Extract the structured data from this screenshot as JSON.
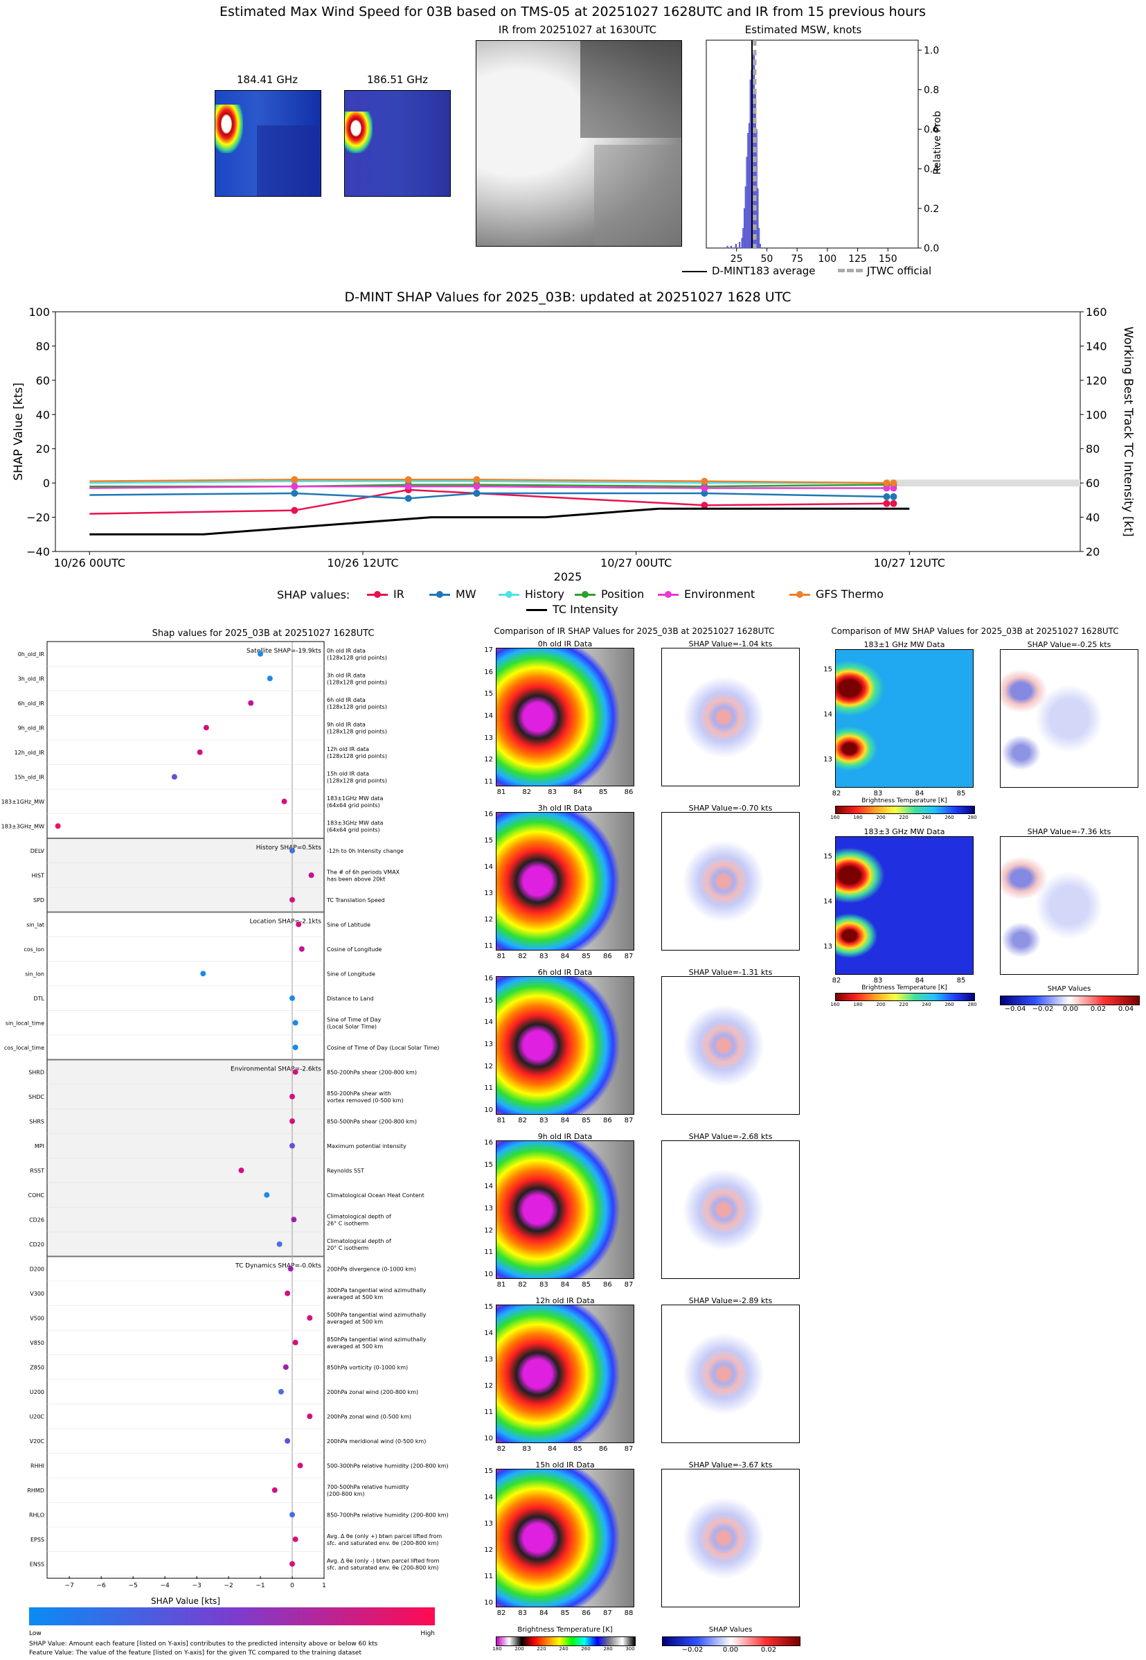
{
  "header": {
    "main_title": "Estimated Max Wind Speed for 03B based on TMS-05 at 20251027 1628UTC and IR from 15 previous hours",
    "mw1_title": "184.41 GHz",
    "mw2_title": "186.51 GHz",
    "ir_title": "IR from 20251027 at 1630UTC",
    "hist_title": "Estimated MSW, knots",
    "hist_ylabel": "Relative Prob",
    "hist_xticks": [
      "25",
      "50",
      "75",
      "100",
      "125",
      "150"
    ],
    "hist_yticks": [
      "0.0",
      "0.2",
      "0.4",
      "0.6",
      "0.8",
      "1.0"
    ],
    "legend_avg": "D-MINT183 average",
    "legend_jtwc": "JTWC official"
  },
  "shap_ts": {
    "title": "D-MINT SHAP Values for 2025_03B: updated at 20251027 1628 UTC",
    "ylabel_left": "SHAP Value [kts]",
    "ylabel_right": "Working Best Track TC Intensity [kt]",
    "xlabel": "2025",
    "left_ticks": [
      "100",
      "80",
      "60",
      "40",
      "20",
      "0",
      "−20",
      "−40"
    ],
    "right_ticks": [
      "160",
      "140",
      "120",
      "100",
      "80",
      "60",
      "40",
      "20"
    ],
    "x_ticks": [
      "10/26 00UTC",
      "10/26 12UTC",
      "10/27 00UTC",
      "10/27 12UTC"
    ],
    "legend_label": "SHAP values:",
    "legend_items": [
      "IR",
      "MW",
      "History",
      "Position",
      "Environment",
      "GFS Thermo",
      "TC Intensity"
    ]
  },
  "chart_data": {
    "type": "line",
    "title": "D-MINT SHAP Values for 2025_03B: updated at 20251027 1628 UTC",
    "x_hours": [
      0,
      18,
      28,
      34,
      54,
      70
    ],
    "ylim": [
      -40,
      100
    ],
    "y2lim": [
      20,
      160
    ],
    "series": [
      {
        "name": "IR",
        "color": "#e8124e",
        "values": [
          -18,
          -16,
          -4,
          -6,
          -13,
          -12
        ]
      },
      {
        "name": "MW",
        "color": "#1f77b4",
        "values": [
          -7,
          -6,
          -9,
          -6,
          -6,
          -8
        ]
      },
      {
        "name": "History",
        "color": "#4ee2e8",
        "values": [
          0,
          1,
          1,
          1,
          0,
          0
        ]
      },
      {
        "name": "Position",
        "color": "#2ca02c",
        "values": [
          -2,
          -2,
          -1,
          -1,
          -2,
          -1
        ]
      },
      {
        "name": "Environment",
        "color": "#e839d5",
        "values": [
          -3,
          -2,
          -2,
          -2,
          -3,
          -3
        ]
      },
      {
        "name": "GFS Thermo",
        "color": "#f07f29",
        "values": [
          1,
          2,
          2,
          2,
          1,
          0
        ]
      }
    ],
    "tc_intensity": {
      "name": "TC Intensity",
      "x_hours": [
        0,
        10,
        20,
        30,
        40,
        50,
        70,
        72
      ],
      "values": [
        30,
        30,
        35,
        40,
        40,
        45,
        45,
        45
      ]
    }
  },
  "feature_panel": {
    "title": "Shap values for 2025_03B at 20251027 1628UTC",
    "xlabel": "SHAP Value [kts]",
    "xticks": [
      "−7",
      "−6",
      "−5",
      "−4",
      "−3",
      "−2",
      "−1",
      "0",
      "1"
    ],
    "group_labels": [
      {
        "text": "Satellite SHAP=-19.9kts"
      },
      {
        "text": "History SHAP=0.5kts"
      },
      {
        "text": "Location SHAP=-2.1kts"
      },
      {
        "text": "Environmental SHAP=-2.6kts"
      },
      {
        "text": "TC Dynamics SHAP=-0.0kts"
      }
    ],
    "rows": [
      {
        "name": "0h_old_IR",
        "desc": "0h old IR data\n(128x128 grid points)",
        "shap": -1.0,
        "color": "#1a8be8"
      },
      {
        "name": "3h_old_IR",
        "desc": "3h old IR data\n(128x128 grid points)",
        "shap": -0.7,
        "color": "#1a8be8"
      },
      {
        "name": "6h_old_IR",
        "desc": "6h old IR data\n(128x128 grid points)",
        "shap": -1.3,
        "color": "#c41296"
      },
      {
        "name": "9h_old_IR",
        "desc": "9h old IR data\n(128x128 grid points)",
        "shap": -2.7,
        "color": "#d4107e"
      },
      {
        "name": "12h_old_IR",
        "desc": "12h old IR data\n(128x128 grid points)",
        "shap": -2.9,
        "color": "#d4107e"
      },
      {
        "name": "15h_old_IR",
        "desc": "15h old IR data\n(128x128 grid points)",
        "shap": -3.7,
        "color": "#6a4bd8"
      },
      {
        "name": "183±1GHz_MW",
        "desc": "183±1GHz MW data\n(64x64 grid points)",
        "shap": -0.25,
        "color": "#d4107e"
      },
      {
        "name": "183±3GHz_MW",
        "desc": "183±3GHz MW data\n(64x64 grid points)",
        "shap": -7.36,
        "color": "#f4105a"
      },
      {
        "name": "DELV",
        "desc": "-12h to 0h Intensity change",
        "shap": 0.0,
        "color": "#4a6ee0"
      },
      {
        "name": "HIST",
        "desc": "The # of 6h periods VMAX\nhas been above 20kt",
        "shap": 0.6,
        "color": "#c41296"
      },
      {
        "name": "SPD",
        "desc": "TC Translation Speed",
        "shap": 0.0,
        "color": "#d4107e"
      },
      {
        "name": "sin_lat",
        "desc": "Sine of Latitude",
        "shap": 0.2,
        "color": "#d4107e"
      },
      {
        "name": "cos_lon",
        "desc": "Cosine of Longitude",
        "shap": 0.3,
        "color": "#c41296"
      },
      {
        "name": "sin_lon",
        "desc": "Sine of Longitude",
        "shap": -2.8,
        "color": "#1a8be8"
      },
      {
        "name": "DTL",
        "desc": "Distance to Land",
        "shap": 0.0,
        "color": "#1a8be8"
      },
      {
        "name": "sin_local_time",
        "desc": "Sine of Time of Day\n(Local Solar Time)",
        "shap": 0.1,
        "color": "#1a8be8"
      },
      {
        "name": "cos_local_time",
        "desc": "Cosine of Time of Day (Local Solar Time)",
        "shap": 0.1,
        "color": "#1a8be8"
      },
      {
        "name": "SHRD",
        "desc": "850-200hPa shear (200-800 km)",
        "shap": 0.1,
        "color": "#d4107e"
      },
      {
        "name": "SHDC",
        "desc": "850-200hPa shear with\nvortex removed (0-500 km)",
        "shap": 0.0,
        "color": "#d4107e"
      },
      {
        "name": "SHRS",
        "desc": "850-500hPa shear (200-800 km)",
        "shap": 0.0,
        "color": "#d4107e"
      },
      {
        "name": "MPI",
        "desc": "Maximum potential intensity",
        "shap": 0.0,
        "color": "#6a4bd8"
      },
      {
        "name": "RSST",
        "desc": "Reynolds SST",
        "shap": -1.6,
        "color": "#d4107e"
      },
      {
        "name": "COHC",
        "desc": "Climatological Ocean Heat Content",
        "shap": -0.8,
        "color": "#1a8be8"
      },
      {
        "name": "CD26",
        "desc": "Climatological depth of\n26° C isotherm",
        "shap": 0.05,
        "color": "#a020b0"
      },
      {
        "name": "CD20",
        "desc": "Climatological depth of\n20° C isotherm",
        "shap": -0.4,
        "color": "#4a6ee0"
      },
      {
        "name": "D200",
        "desc": "200hPa divergence (0-1000 km)",
        "shap": -0.05,
        "color": "#a020b0"
      },
      {
        "name": "V300",
        "desc": "300hPa tangential wind azimuthally\naveraged at 500 km",
        "shap": -0.15,
        "color": "#d4107e"
      },
      {
        "name": "V500",
        "desc": "500hPa tangential wind azimuthally\naveraged at 500 km",
        "shap": 0.55,
        "color": "#d4107e"
      },
      {
        "name": "V850",
        "desc": "850hPa tangential wind azimuthally\naveraged at 500 km",
        "shap": 0.1,
        "color": "#d4107e"
      },
      {
        "name": "Z850",
        "desc": "850hPa vorticity (0-1000 km)",
        "shap": -0.2,
        "color": "#a020b0"
      },
      {
        "name": "U200",
        "desc": "200hPa zonal wind (200-800 km)",
        "shap": -0.35,
        "color": "#4a6ee0"
      },
      {
        "name": "U20C",
        "desc": "200hPa zonal wind (0-500 km)",
        "shap": 0.55,
        "color": "#d4107e"
      },
      {
        "name": "V20C",
        "desc": "200hPa meridional wind (0-500 km)",
        "shap": -0.15,
        "color": "#6a4bd8"
      },
      {
        "name": "RHHI",
        "desc": "500-300hPa relative humidity (200-800 km)",
        "shap": 0.25,
        "color": "#d4107e"
      },
      {
        "name": "RHMD",
        "desc": "700-500hPa relative humidity\n(200-800 km)",
        "shap": -0.55,
        "color": "#d4107e"
      },
      {
        "name": "RHLO",
        "desc": "850-700hPa relative humidity (200-800 km)",
        "shap": 0.0,
        "color": "#4a6ee0"
      },
      {
        "name": "EPSS",
        "desc": "Avg. Δ θe (only +) btwn parcel lifted from\nsfc. and saturated env. θe (200-800 km)",
        "shap": 0.1,
        "color": "#d4107e"
      },
      {
        "name": "ENSS",
        "desc": "Avg. Δ θe (only -) btwn parcel lifted from\nsfc. and saturated env. θe (200-800 km)",
        "shap": 0.0,
        "color": "#d4107e"
      }
    ],
    "cbar_low": "Low",
    "cbar_high": "High",
    "footnote1": "SHAP Value: Amount each feature [listed on Y-axis] contributes to the predicted intensity above or below 60 kts",
    "footnote2": "Feature Value: The value of the feature [listed on Y-axis] for the given TC compared to the training dataset"
  },
  "ir_comparison": {
    "title": "Comparison of IR SHAP Values for 2025_03B at 20251027 1628UTC",
    "panels": [
      {
        "data_title": "0h old IR Data",
        "shap_title": "SHAP Value=-1.04 kts",
        "yticks": [
          "17",
          "16",
          "15",
          "14",
          "13",
          "12",
          "11"
        ],
        "xticks": [
          "81",
          "82",
          "83",
          "84",
          "85",
          "86"
        ]
      },
      {
        "data_title": "3h old IR Data",
        "shap_title": "SHAP Value=-0.70 kts",
        "yticks": [
          "16",
          "15",
          "14",
          "13",
          "12",
          "11"
        ],
        "xticks": [
          "81",
          "82",
          "83",
          "84",
          "85",
          "86",
          "87"
        ]
      },
      {
        "data_title": "6h old IR Data",
        "shap_title": "SHAP Value=-1.31 kts",
        "yticks": [
          "16",
          "15",
          "14",
          "13",
          "12",
          "11",
          "10"
        ],
        "xticks": [
          "81",
          "82",
          "83",
          "84",
          "85",
          "86",
          "87"
        ]
      },
      {
        "data_title": "9h old IR Data",
        "shap_title": "SHAP Value=-2.68 kts",
        "yticks": [
          "16",
          "15",
          "14",
          "13",
          "12",
          "11",
          "10"
        ],
        "xticks": [
          "81",
          "82",
          "83",
          "84",
          "85",
          "86",
          "87"
        ]
      },
      {
        "data_title": "12h old IR Data",
        "shap_title": "SHAP Value=-2.89 kts",
        "yticks": [
          "15",
          "14",
          "13",
          "12",
          "11",
          "10"
        ],
        "xticks": [
          "82",
          "83",
          "84",
          "85",
          "86",
          "87"
        ]
      },
      {
        "data_title": "15h old IR Data",
        "shap_title": "SHAP Value=-3.67 kts",
        "yticks": [
          "15",
          "14",
          "13",
          "12",
          "11",
          "10"
        ],
        "xticks": [
          "82",
          "83",
          "84",
          "85",
          "86",
          "87",
          "88"
        ]
      }
    ],
    "cbar_label": "Brightness Temperature [K]",
    "cbar_ticks": [
      "180",
      "200",
      "220",
      "240",
      "260",
      "280",
      "300"
    ],
    "shap_cbar_label": "SHAP Values",
    "shap_cbar_ticks": [
      "−0.02",
      "0.00",
      "0.02"
    ]
  },
  "mw_comparison": {
    "title": "Comparison of MW SHAP Values for 2025_03B at 20251027 1628UTC",
    "panels": [
      {
        "data_title": "183±1 GHz MW Data",
        "shap_title": "SHAP Value=-0.25 kts"
      },
      {
        "data_title": "183±3 GHz MW Data",
        "shap_title": "SHAP Value=-7.36 kts"
      }
    ],
    "yticks": [
      "15",
      "14",
      "13"
    ],
    "xticks": [
      "82",
      "83",
      "84",
      "85"
    ],
    "cbar_label": "Brightness Temperature [K]",
    "cbar_ticks": [
      "160",
      "180",
      "200",
      "220",
      "240",
      "260",
      "280"
    ],
    "shap_cbar_label": "SHAP Values",
    "shap_cbar_ticks": [
      "−0.04",
      "−0.02",
      "0.00",
      "0.02",
      "0.04"
    ]
  }
}
